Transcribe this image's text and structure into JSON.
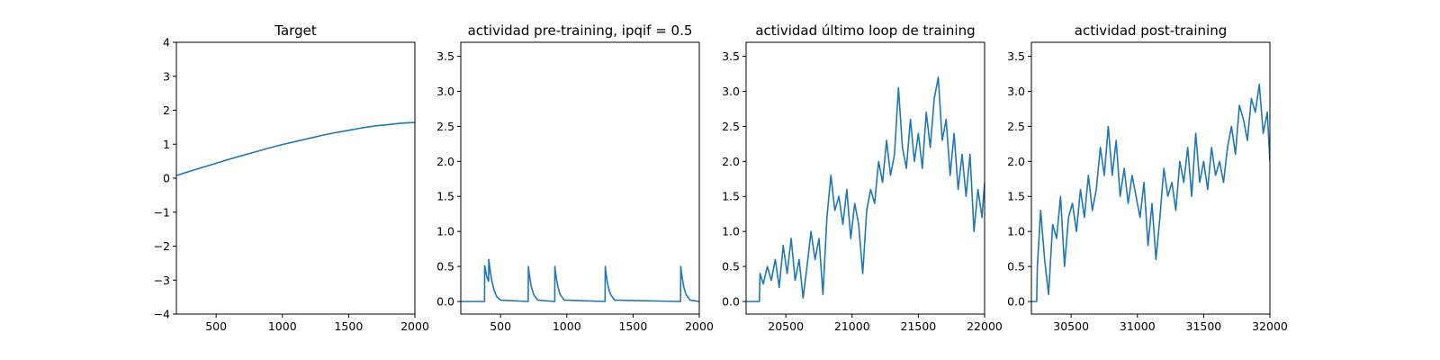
{
  "colors": {
    "line": "#1f77b4",
    "axes": "#000000",
    "background": "#ffffff"
  },
  "chart_data": [
    {
      "type": "line",
      "title": "Target",
      "xlabel": "",
      "ylabel": "",
      "xlim": [
        200,
        2000
      ],
      "ylim": [
        -4,
        4
      ],
      "xticks": [
        500,
        1000,
        1500,
        2000
      ],
      "yticks": [
        -4,
        -3,
        -2,
        -1,
        0,
        1,
        2,
        3,
        4
      ],
      "grid": false,
      "legend": "none",
      "series": [
        {
          "x": [
            200,
            300,
            400,
            500,
            600,
            700,
            800,
            900,
            1000,
            1100,
            1200,
            1300,
            1400,
            1500,
            1600,
            1700,
            1800,
            1900,
            2000
          ],
          "y": [
            0.08,
            0.2,
            0.32,
            0.44,
            0.56,
            0.67,
            0.78,
            0.89,
            0.99,
            1.08,
            1.17,
            1.26,
            1.34,
            1.41,
            1.48,
            1.54,
            1.58,
            1.62,
            1.64
          ]
        }
      ]
    },
    {
      "type": "line",
      "title": "actividad pre-training, ipqif = 0.5",
      "xlabel": "",
      "ylabel": "",
      "xlim": [
        200,
        2000
      ],
      "ylim": [
        -0.18,
        3.7
      ],
      "xticks": [
        500,
        1000,
        1500,
        2000
      ],
      "yticks": [
        0.0,
        0.5,
        1.0,
        1.5,
        2.0,
        2.5,
        3.0,
        3.5
      ],
      "grid": false,
      "legend": "none",
      "series": [
        {
          "x": [
            200,
            379,
            380,
            386,
            393,
            400,
            407,
            410,
            411,
            417,
            425,
            435,
            450,
            470,
            500,
            709,
            710,
            716,
            724,
            734,
            750,
            780,
            909,
            910,
            916,
            924,
            934,
            950,
            980,
            1289,
            1290,
            1296,
            1304,
            1314,
            1330,
            1360,
            1859,
            1860,
            1866,
            1874,
            1884,
            1900,
            1930,
            2000
          ],
          "y": [
            0,
            0,
            0.51,
            0.46,
            0.38,
            0.33,
            0.3,
            0.29,
            0.6,
            0.51,
            0.4,
            0.29,
            0.17,
            0.07,
            0.02,
            0,
            0.5,
            0.4,
            0.3,
            0.2,
            0.1,
            0.02,
            0,
            0.5,
            0.4,
            0.3,
            0.2,
            0.1,
            0.02,
            0,
            0.5,
            0.4,
            0.3,
            0.2,
            0.1,
            0.02,
            0,
            0.5,
            0.4,
            0.3,
            0.2,
            0.1,
            0.02,
            0
          ]
        }
      ]
    },
    {
      "type": "line",
      "title": "actividad último loop de training",
      "xlabel": "",
      "ylabel": "",
      "xlim": [
        20200,
        22000
      ],
      "ylim": [
        -0.18,
        3.7
      ],
      "xticks": [
        20500,
        21000,
        21500,
        22000
      ],
      "yticks": [
        0.0,
        0.5,
        1.0,
        1.5,
        2.0,
        2.5,
        3.0,
        3.5
      ],
      "grid": false,
      "legend": "none",
      "series": [
        {
          "x": [
            20200,
            20300,
            20305,
            20330,
            20360,
            20390,
            20420,
            20450,
            20480,
            20510,
            20540,
            20570,
            20600,
            20630,
            20660,
            20690,
            20720,
            20750,
            20780,
            20810,
            20840,
            20870,
            20900,
            20930,
            20960,
            20990,
            21020,
            21050,
            21080,
            21110,
            21140,
            21170,
            21200,
            21230,
            21260,
            21290,
            21320,
            21350,
            21380,
            21410,
            21440,
            21470,
            21500,
            21530,
            21560,
            21590,
            21620,
            21650,
            21680,
            21710,
            21740,
            21770,
            21800,
            21830,
            21860,
            21890,
            21920,
            21950,
            21980,
            22000
          ],
          "y": [
            0,
            0,
            0.4,
            0.25,
            0.5,
            0.3,
            0.6,
            0.2,
            0.8,
            0.4,
            0.9,
            0.3,
            0.6,
            0.05,
            0.5,
            1.0,
            0.6,
            0.9,
            0.1,
            1.2,
            1.8,
            1.3,
            1.5,
            1.1,
            1.6,
            0.9,
            1.4,
            1.1,
            0.4,
            1.3,
            1.6,
            1.4,
            2.0,
            1.7,
            2.3,
            1.8,
            2.1,
            3.05,
            2.2,
            1.9,
            2.6,
            2.0,
            2.4,
            1.9,
            2.7,
            2.2,
            2.9,
            3.2,
            2.3,
            2.6,
            1.8,
            2.4,
            1.6,
            2.1,
            1.5,
            2.1,
            1.0,
            1.6,
            1.2,
            1.7
          ]
        }
      ]
    },
    {
      "type": "line",
      "title": "actividad post-training",
      "xlabel": "",
      "ylabel": "",
      "xlim": [
        30200,
        32000
      ],
      "ylim": [
        -0.18,
        3.7
      ],
      "xticks": [
        30500,
        31000,
        31500,
        32000
      ],
      "yticks": [
        0.0,
        0.5,
        1.0,
        1.5,
        2.0,
        2.5,
        3.0,
        3.5
      ],
      "grid": false,
      "legend": "none",
      "series": [
        {
          "x": [
            30200,
            30240,
            30245,
            30270,
            30300,
            30330,
            30360,
            30390,
            30420,
            30450,
            30480,
            30510,
            30540,
            30570,
            30600,
            30630,
            30660,
            30690,
            30720,
            30750,
            30780,
            30810,
            30840,
            30870,
            30900,
            30930,
            30960,
            30990,
            31020,
            31050,
            31080,
            31110,
            31140,
            31170,
            31200,
            31230,
            31260,
            31290,
            31320,
            31350,
            31380,
            31410,
            31440,
            31470,
            31500,
            31530,
            31560,
            31590,
            31620,
            31650,
            31680,
            31710,
            31740,
            31770,
            31800,
            31830,
            31860,
            31890,
            31920,
            31950,
            31980,
            32000
          ],
          "y": [
            0,
            0,
            0.5,
            1.3,
            0.6,
            0.1,
            1.1,
            0.9,
            1.5,
            0.5,
            1.2,
            1.4,
            1.0,
            1.6,
            1.2,
            1.8,
            1.3,
            1.6,
            2.2,
            1.8,
            2.5,
            1.8,
            2.3,
            1.5,
            1.9,
            1.4,
            1.8,
            1.5,
            1.2,
            1.7,
            0.8,
            1.4,
            0.6,
            1.2,
            1.9,
            1.5,
            1.7,
            1.3,
            2.0,
            1.7,
            2.2,
            1.5,
            2.4,
            1.7,
            2.0,
            1.6,
            2.2,
            1.8,
            2.0,
            1.7,
            2.2,
            2.5,
            2.1,
            2.8,
            2.6,
            2.3,
            2.9,
            2.7,
            3.1,
            2.4,
            2.7,
            2.0
          ]
        }
      ]
    }
  ]
}
